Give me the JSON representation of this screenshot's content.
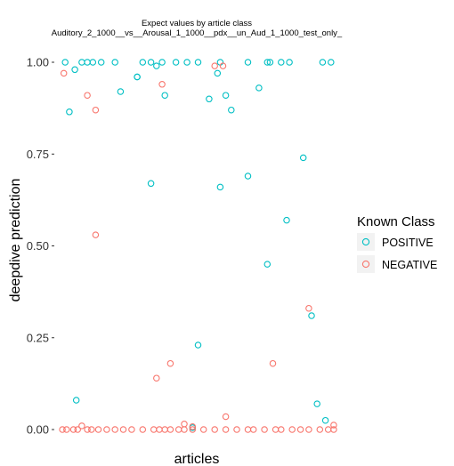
{
  "chart_data": {
    "type": "scatter",
    "title": "Expect values by article class",
    "subtitle": "Auditory_2_1000__vs__Arousal_1_1000__pdx__un_Aud_1_1000_test_only_",
    "xlabel": "articles",
    "ylabel": "deepdive prediction",
    "ylim": [
      0,
      1
    ],
    "yticks": [
      "0.00",
      "0.25",
      "0.50",
      "0.75",
      "1.00"
    ],
    "grid": false,
    "legend": {
      "title": "Known Class",
      "placement": "right",
      "entries": [
        {
          "name": "POSITIVE",
          "color": "#00BFC4"
        },
        {
          "name": "NEGATIVE",
          "color": "#F8766D"
        }
      ]
    },
    "series": [
      {
        "name": "POSITIVE",
        "color": "#00BFC4",
        "x": [
          0.02,
          0.035,
          0.055,
          0.08,
          0.1,
          0.12,
          0.15,
          0.2,
          0.22,
          0.28,
          0.3,
          0.33,
          0.35,
          0.37,
          0.38,
          0.42,
          0.46,
          0.5,
          0.54,
          0.57,
          0.58,
          0.6,
          0.62,
          0.68,
          0.72,
          0.75,
          0.76,
          0.8,
          0.83,
          0.88,
          0.91,
          0.93,
          0.95,
          0.96,
          0.98,
          0.28,
          0.58,
          0.75,
          0.06,
          0.82,
          0.68,
          0.5,
          0.48,
          0.33
        ],
        "y": [
          1.0,
          0.865,
          0.98,
          1.0,
          1.0,
          1.0,
          1.0,
          1.0,
          0.92,
          0.96,
          1.0,
          1.0,
          0.99,
          1.0,
          0.91,
          1.0,
          1.0,
          1.0,
          0.9,
          0.97,
          1.0,
          0.91,
          0.87,
          1.0,
          0.93,
          1.0,
          1.0,
          1.0,
          1.0,
          0.74,
          0.31,
          0.07,
          1.0,
          0.025,
          1.0,
          0.96,
          0.66,
          0.45,
          0.08,
          0.57,
          0.69,
          0.23,
          0.005,
          0.67
        ]
      },
      {
        "name": "NEGATIVE",
        "color": "#F8766D",
        "x": [
          0.01,
          0.025,
          0.05,
          0.065,
          0.1,
          0.115,
          0.14,
          0.17,
          0.2,
          0.23,
          0.26,
          0.3,
          0.34,
          0.36,
          0.38,
          0.4,
          0.43,
          0.45,
          0.48,
          0.52,
          0.56,
          0.6,
          0.64,
          0.68,
          0.7,
          0.74,
          0.78,
          0.8,
          0.84,
          0.87,
          0.9,
          0.94,
          0.97,
          0.99,
          0.015,
          0.1,
          0.13,
          0.37,
          0.4,
          0.56,
          0.08,
          0.13,
          0.59,
          0.9,
          0.77,
          0.45,
          0.6,
          0.35,
          0.48,
          0.99
        ],
        "y": [
          0.0,
          0.0,
          0.0,
          0.0,
          0.0,
          0.0,
          0.0,
          0.0,
          0.0,
          0.0,
          0.0,
          0.0,
          0.0,
          0.0,
          0.0,
          0.0,
          0.0,
          0.0,
          0.0,
          0.0,
          0.0,
          0.0,
          0.0,
          0.0,
          0.0,
          0.0,
          0.0,
          0.0,
          0.0,
          0.0,
          0.0,
          0.0,
          0.0,
          0.0,
          0.97,
          0.91,
          0.87,
          0.94,
          0.18,
          0.99,
          0.01,
          0.53,
          0.99,
          0.33,
          0.18,
          0.015,
          0.035,
          0.14,
          0.008,
          0.012
        ]
      }
    ]
  }
}
